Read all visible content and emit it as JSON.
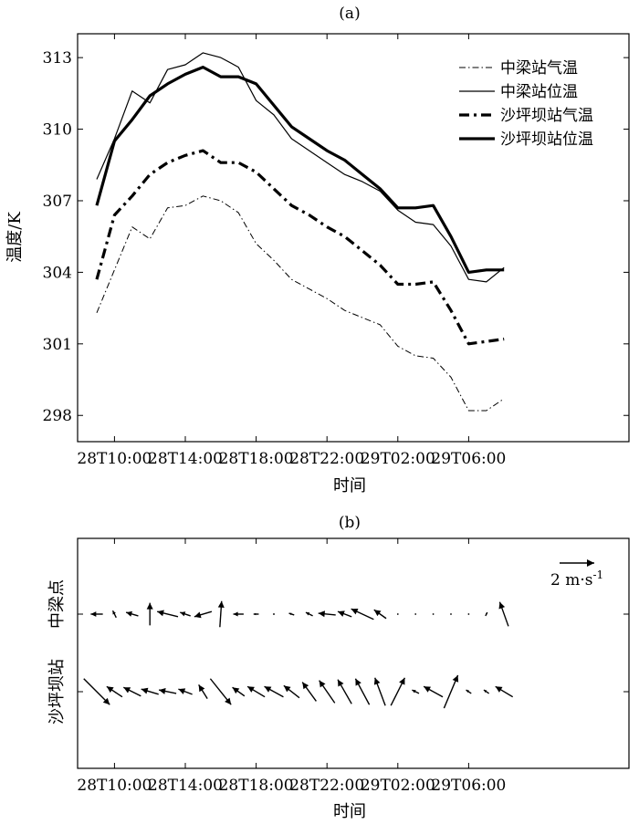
{
  "chart_data": [
    {
      "type": "line",
      "panel_label": "(a)",
      "xlabel": "时间",
      "ylabel": "温度/K",
      "x_tick_labels": [
        "28T10:00",
        "28T14:00",
        "28T18:00",
        "28T22:00",
        "29T02:00",
        "29T06:00"
      ],
      "x_tick_hours": [
        1,
        5,
        9,
        13,
        17,
        21
      ],
      "x_hours_from_28T09": [
        0,
        1,
        2,
        3,
        4,
        5,
        6,
        7,
        8,
        9,
        10,
        11,
        12,
        13,
        14,
        15,
        16,
        17,
        18,
        19,
        20,
        21,
        22,
        23
      ],
      "ylim": [
        296.9,
        314.0
      ],
      "y_ticks": [
        298,
        301,
        304,
        307,
        310,
        313
      ],
      "legend_position": "top-right",
      "series": [
        {
          "name": "中梁站气温",
          "style": "dashdot-thin",
          "values": [
            302.3,
            304.1,
            305.9,
            305.4,
            306.7,
            306.8,
            307.2,
            307.0,
            306.5,
            305.2,
            304.5,
            303.7,
            303.3,
            302.9,
            302.4,
            302.1,
            301.8,
            300.9,
            300.5,
            300.4,
            299.6,
            298.2,
            298.2,
            298.7
          ]
        },
        {
          "name": "中梁站位温",
          "style": "solid-thin",
          "values": [
            307.9,
            309.6,
            311.6,
            311.1,
            312.5,
            312.7,
            313.2,
            313.0,
            312.6,
            311.2,
            310.6,
            309.6,
            309.1,
            308.6,
            308.1,
            307.8,
            307.4,
            306.6,
            306.1,
            306.0,
            305.1,
            303.7,
            303.6,
            304.2
          ]
        },
        {
          "name": "沙坪坝站气温",
          "style": "dashdot-thick",
          "values": [
            303.7,
            306.4,
            307.2,
            308.1,
            308.6,
            308.9,
            309.1,
            308.6,
            308.6,
            308.2,
            307.5,
            306.8,
            306.4,
            305.9,
            305.5,
            304.9,
            304.3,
            303.5,
            303.5,
            303.6,
            302.4,
            301.0,
            301.1,
            301.2
          ]
        },
        {
          "name": "沙坪坝站位温",
          "style": "solid-thick",
          "values": [
            306.8,
            309.5,
            310.4,
            311.4,
            311.9,
            312.3,
            312.6,
            312.2,
            312.2,
            311.9,
            311.0,
            310.1,
            309.6,
            309.1,
            308.7,
            308.1,
            307.5,
            306.7,
            306.7,
            306.8,
            305.5,
            304.0,
            304.1,
            304.1
          ]
        }
      ]
    },
    {
      "type": "vector",
      "panel_label": "(b)",
      "xlabel": "时间",
      "row_labels": [
        "中梁点",
        "沙坪坝站"
      ],
      "x_tick_labels": [
        "28T10:00",
        "28T14:00",
        "28T18:00",
        "28T22:00",
        "29T02:00",
        "29T06:00"
      ],
      "x_tick_hours": [
        1,
        5,
        9,
        13,
        17,
        21
      ],
      "scale_label": "2 m·s",
      "scale_label_sup": "-1",
      "scale_speed": 2,
      "x_hours_from_28T09": [
        0,
        1,
        2,
        3,
        4,
        5,
        6,
        7,
        8,
        9,
        10,
        11,
        12,
        13,
        14,
        15,
        16,
        17,
        18,
        19,
        20,
        21,
        22,
        23
      ],
      "series": [
        {
          "name": "中梁点",
          "u": [
            -0.7,
            -0.2,
            -0.7,
            0.0,
            -1.2,
            -0.6,
            -1.0,
            0.1,
            -0.6,
            -0.3,
            -0.1,
            -0.3,
            -0.4,
            -1.0,
            -0.8,
            -1.3,
            -0.7,
            0.0,
            0.0,
            0.0,
            0.0,
            0.0,
            0.1,
            -0.5
          ],
          "v": [
            0.0,
            0.4,
            0.2,
            1.3,
            0.3,
            0.2,
            -0.3,
            1.5,
            0.0,
            0.0,
            0.0,
            0.1,
            0.2,
            0.1,
            0.3,
            0.6,
            0.5,
            0.0,
            0.0,
            0.0,
            0.0,
            0.0,
            0.2,
            1.4
          ]
        },
        {
          "name": "沙坪坝站",
          "u": [
            1.5,
            -0.9,
            -1.0,
            -1.0,
            -1.0,
            -0.8,
            -0.5,
            1.2,
            -0.7,
            -1.0,
            -1.1,
            -0.9,
            -0.8,
            -0.9,
            -0.8,
            -0.8,
            -0.6,
            0.8,
            -0.4,
            -1.1,
            0.8,
            -0.3,
            -0.3,
            -1.0
          ],
          "v": [
            -1.5,
            0.6,
            0.5,
            0.3,
            0.2,
            0.3,
            0.8,
            -1.5,
            0.5,
            0.6,
            0.6,
            0.7,
            1.1,
            1.3,
            1.4,
            1.5,
            1.6,
            1.6,
            0.2,
            0.6,
            1.9,
            0.2,
            0.2,
            0.6
          ]
        }
      ]
    }
  ]
}
